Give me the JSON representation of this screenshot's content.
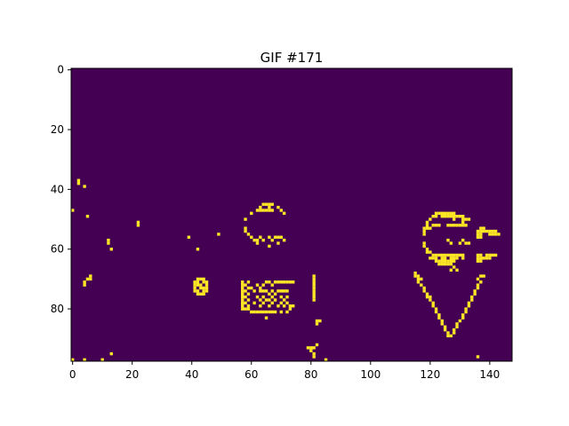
{
  "chart_data": {
    "type": "heatmap",
    "title": "GIF #171",
    "colors": {
      "background": "#440154",
      "foreground": "#fde725"
    },
    "grid_size": {
      "cols": 148,
      "rows": 98
    },
    "xlim": [
      -0.5,
      147.5
    ],
    "ylim": [
      97.5,
      -0.5
    ],
    "x_ticks": [
      0,
      20,
      40,
      60,
      80,
      100,
      120,
      140
    ],
    "y_ticks": [
      0,
      20,
      40,
      60,
      80
    ],
    "lit_pixels": [
      [
        2,
        37
      ],
      [
        2,
        38
      ],
      [
        4,
        39
      ],
      [
        0,
        47
      ],
      [
        5,
        49
      ],
      [
        22,
        51
      ],
      [
        22,
        52
      ],
      [
        12,
        57
      ],
      [
        12,
        58
      ],
      [
        13,
        60
      ],
      [
        39,
        56
      ],
      [
        42,
        60
      ],
      [
        49,
        55
      ],
      [
        4,
        71
      ],
      [
        4,
        72
      ],
      [
        5,
        70
      ],
      [
        6,
        69
      ],
      [
        6,
        70
      ],
      [
        0,
        97
      ],
      [
        4,
        97
      ],
      [
        10,
        97
      ],
      [
        13,
        95
      ],
      [
        63,
        46
      ],
      [
        64,
        45
      ],
      [
        65,
        45
      ],
      [
        66,
        45
      ],
      [
        67,
        45
      ],
      [
        66,
        46
      ],
      [
        62,
        47
      ],
      [
        63,
        47
      ],
      [
        64,
        47
      ],
      [
        65,
        47
      ],
      [
        66,
        47
      ],
      [
        67,
        47
      ],
      [
        69,
        46
      ],
      [
        70,
        47
      ],
      [
        60,
        48
      ],
      [
        71,
        48
      ],
      [
        58,
        50
      ],
      [
        58,
        53
      ],
      [
        58,
        54
      ],
      [
        59,
        55
      ],
      [
        60,
        56
      ],
      [
        61,
        57
      ],
      [
        62,
        57
      ],
      [
        62,
        58
      ],
      [
        63,
        56
      ],
      [
        64,
        57
      ],
      [
        66,
        56
      ],
      [
        67,
        57
      ],
      [
        68,
        56
      ],
      [
        69,
        56
      ],
      [
        70,
        56
      ],
      [
        69,
        58
      ],
      [
        71,
        57
      ],
      [
        66,
        59
      ],
      [
        42,
        70
      ],
      [
        43,
        70
      ],
      [
        44,
        70
      ],
      [
        41,
        71
      ],
      [
        42,
        71
      ],
      [
        44,
        71
      ],
      [
        45,
        71
      ],
      [
        41,
        72
      ],
      [
        42,
        72
      ],
      [
        43,
        72
      ],
      [
        45,
        72
      ],
      [
        41,
        73
      ],
      [
        43,
        73
      ],
      [
        44,
        73
      ],
      [
        45,
        73
      ],
      [
        41,
        74
      ],
      [
        42,
        74
      ],
      [
        44,
        74
      ],
      [
        45,
        74
      ],
      [
        42,
        75
      ],
      [
        43,
        75
      ],
      [
        44,
        75
      ],
      [
        57,
        71
      ],
      [
        57,
        72
      ],
      [
        57,
        73
      ],
      [
        57,
        74
      ],
      [
        57,
        75
      ],
      [
        57,
        76
      ],
      [
        57,
        77
      ],
      [
        57,
        78
      ],
      [
        57,
        79
      ],
      [
        57,
        80
      ],
      [
        58,
        72
      ],
      [
        58,
        74
      ],
      [
        58,
        76
      ],
      [
        58,
        78
      ],
      [
        58,
        80
      ],
      [
        59,
        71
      ],
      [
        59,
        73
      ],
      [
        59,
        75
      ],
      [
        59,
        77
      ],
      [
        59,
        79
      ],
      [
        59,
        80
      ],
      [
        60,
        73
      ],
      [
        61,
        74
      ],
      [
        62,
        72
      ],
      [
        63,
        73
      ],
      [
        64,
        72
      ],
      [
        65,
        71
      ],
      [
        66,
        71
      ],
      [
        67,
        72
      ],
      [
        68,
        71
      ],
      [
        69,
        71
      ],
      [
        70,
        71
      ],
      [
        71,
        71
      ],
      [
        72,
        71
      ],
      [
        73,
        71
      ],
      [
        74,
        71
      ],
      [
        63,
        74
      ],
      [
        64,
        74
      ],
      [
        65,
        74
      ],
      [
        66,
        75
      ],
      [
        67,
        74
      ],
      [
        68,
        75
      ],
      [
        69,
        74
      ],
      [
        70,
        74
      ],
      [
        71,
        74
      ],
      [
        72,
        74
      ],
      [
        62,
        76
      ],
      [
        63,
        77
      ],
      [
        64,
        76
      ],
      [
        65,
        77
      ],
      [
        66,
        77
      ],
      [
        67,
        76
      ],
      [
        68,
        77
      ],
      [
        70,
        76
      ],
      [
        71,
        77
      ],
      [
        72,
        76
      ],
      [
        61,
        78
      ],
      [
        63,
        79
      ],
      [
        64,
        78
      ],
      [
        66,
        79
      ],
      [
        67,
        78
      ],
      [
        69,
        79
      ],
      [
        70,
        78
      ],
      [
        71,
        79
      ],
      [
        72,
        78
      ],
      [
        73,
        79
      ],
      [
        74,
        79
      ],
      [
        60,
        81
      ],
      [
        61,
        81
      ],
      [
        62,
        81
      ],
      [
        63,
        81
      ],
      [
        64,
        81
      ],
      [
        65,
        81
      ],
      [
        66,
        81
      ],
      [
        67,
        81
      ],
      [
        68,
        81
      ],
      [
        70,
        81
      ],
      [
        72,
        81
      ],
      [
        73,
        80
      ],
      [
        65,
        83
      ],
      [
        81,
        69
      ],
      [
        81,
        70
      ],
      [
        81,
        71
      ],
      [
        81,
        72
      ],
      [
        81,
        73
      ],
      [
        81,
        74
      ],
      [
        81,
        75
      ],
      [
        81,
        76
      ],
      [
        81,
        77
      ],
      [
        82,
        84
      ],
      [
        83,
        84
      ],
      [
        82,
        85
      ],
      [
        80,
        93
      ],
      [
        81,
        93
      ],
      [
        82,
        92
      ],
      [
        80,
        94
      ],
      [
        81,
        95
      ],
      [
        85,
        97
      ],
      [
        79,
        93
      ],
      [
        81,
        96
      ],
      [
        122,
        48
      ],
      [
        123,
        48
      ],
      [
        124,
        48
      ],
      [
        125,
        48
      ],
      [
        126,
        48
      ],
      [
        127,
        48
      ],
      [
        128,
        48
      ],
      [
        121,
        49
      ],
      [
        122,
        49
      ],
      [
        124,
        49
      ],
      [
        125,
        49
      ],
      [
        126,
        49
      ],
      [
        127,
        49
      ],
      [
        128,
        49
      ],
      [
        129,
        49
      ],
      [
        130,
        49
      ],
      [
        131,
        49
      ],
      [
        120,
        50
      ],
      [
        128,
        50
      ],
      [
        131,
        50
      ],
      [
        132,
        50
      ],
      [
        133,
        50
      ],
      [
        119,
        51
      ],
      [
        131,
        51
      ],
      [
        119,
        52
      ],
      [
        121,
        52
      ],
      [
        122,
        52
      ],
      [
        123,
        52
      ],
      [
        126,
        52
      ],
      [
        127,
        52
      ],
      [
        128,
        52
      ],
      [
        129,
        52
      ],
      [
        130,
        52
      ],
      [
        131,
        52
      ],
      [
        132,
        52
      ],
      [
        118,
        53
      ],
      [
        119,
        53
      ],
      [
        120,
        53
      ],
      [
        118,
        54
      ],
      [
        118,
        55
      ],
      [
        137,
        53
      ],
      [
        138,
        53
      ],
      [
        136,
        54
      ],
      [
        137,
        54
      ],
      [
        138,
        54
      ],
      [
        139,
        54
      ],
      [
        140,
        54
      ],
      [
        141,
        54
      ],
      [
        142,
        54
      ],
      [
        136,
        55
      ],
      [
        137,
        55
      ],
      [
        140,
        55
      ],
      [
        141,
        55
      ],
      [
        142,
        55
      ],
      [
        143,
        55
      ],
      [
        136,
        56
      ],
      [
        137,
        56
      ],
      [
        118,
        58
      ],
      [
        118,
        59
      ],
      [
        119,
        60
      ],
      [
        126,
        57
      ],
      [
        127,
        58
      ],
      [
        130,
        58
      ],
      [
        131,
        57
      ],
      [
        132,
        58
      ],
      [
        133,
        58
      ],
      [
        119,
        61
      ],
      [
        120,
        61
      ],
      [
        121,
        62
      ],
      [
        122,
        62
      ],
      [
        123,
        62
      ],
      [
        124,
        62
      ],
      [
        125,
        62
      ],
      [
        126,
        62
      ],
      [
        127,
        62
      ],
      [
        128,
        62
      ],
      [
        129,
        62
      ],
      [
        130,
        62
      ],
      [
        131,
        62
      ],
      [
        120,
        63
      ],
      [
        121,
        63
      ],
      [
        122,
        63
      ],
      [
        124,
        63
      ],
      [
        125,
        63
      ],
      [
        127,
        63
      ],
      [
        128,
        63
      ],
      [
        129,
        63
      ],
      [
        131,
        63
      ],
      [
        122,
        64
      ],
      [
        123,
        64
      ],
      [
        124,
        64
      ],
      [
        125,
        64
      ],
      [
        126,
        64
      ],
      [
        127,
        64
      ],
      [
        128,
        64
      ],
      [
        123,
        65
      ],
      [
        124,
        65
      ],
      [
        125,
        65
      ],
      [
        126,
        65
      ],
      [
        127,
        65
      ],
      [
        136,
        62
      ],
      [
        137,
        62
      ],
      [
        139,
        62
      ],
      [
        140,
        62
      ],
      [
        141,
        62
      ],
      [
        142,
        62
      ],
      [
        136,
        63
      ],
      [
        137,
        63
      ],
      [
        138,
        63
      ],
      [
        139,
        63
      ],
      [
        140,
        63
      ],
      [
        136,
        64
      ],
      [
        137,
        64
      ],
      [
        127,
        67
      ],
      [
        128,
        66
      ],
      [
        129,
        67
      ],
      [
        115,
        68
      ],
      [
        115,
        69
      ],
      [
        116,
        69
      ],
      [
        116,
        70
      ],
      [
        117,
        70
      ],
      [
        116,
        71
      ],
      [
        117,
        72
      ],
      [
        118,
        73
      ],
      [
        118,
        74
      ],
      [
        119,
        75
      ],
      [
        119,
        76
      ],
      [
        120,
        76
      ],
      [
        120,
        77
      ],
      [
        121,
        78
      ],
      [
        121,
        79
      ],
      [
        122,
        80
      ],
      [
        122,
        81
      ],
      [
        123,
        82
      ],
      [
        123,
        83
      ],
      [
        124,
        84
      ],
      [
        124,
        85
      ],
      [
        125,
        86
      ],
      [
        125,
        87
      ],
      [
        126,
        88
      ],
      [
        126,
        89
      ],
      [
        127,
        89
      ],
      [
        128,
        88
      ],
      [
        128,
        87
      ],
      [
        129,
        86
      ],
      [
        129,
        85
      ],
      [
        130,
        84
      ],
      [
        131,
        83
      ],
      [
        131,
        82
      ],
      [
        132,
        81
      ],
      [
        132,
        80
      ],
      [
        133,
        79
      ],
      [
        133,
        78
      ],
      [
        134,
        77
      ],
      [
        134,
        76
      ],
      [
        135,
        75
      ],
      [
        135,
        74
      ],
      [
        136,
        73
      ],
      [
        136,
        72
      ],
      [
        137,
        71
      ],
      [
        136,
        70
      ],
      [
        137,
        69
      ],
      [
        138,
        69
      ],
      [
        136,
        96
      ]
    ]
  }
}
